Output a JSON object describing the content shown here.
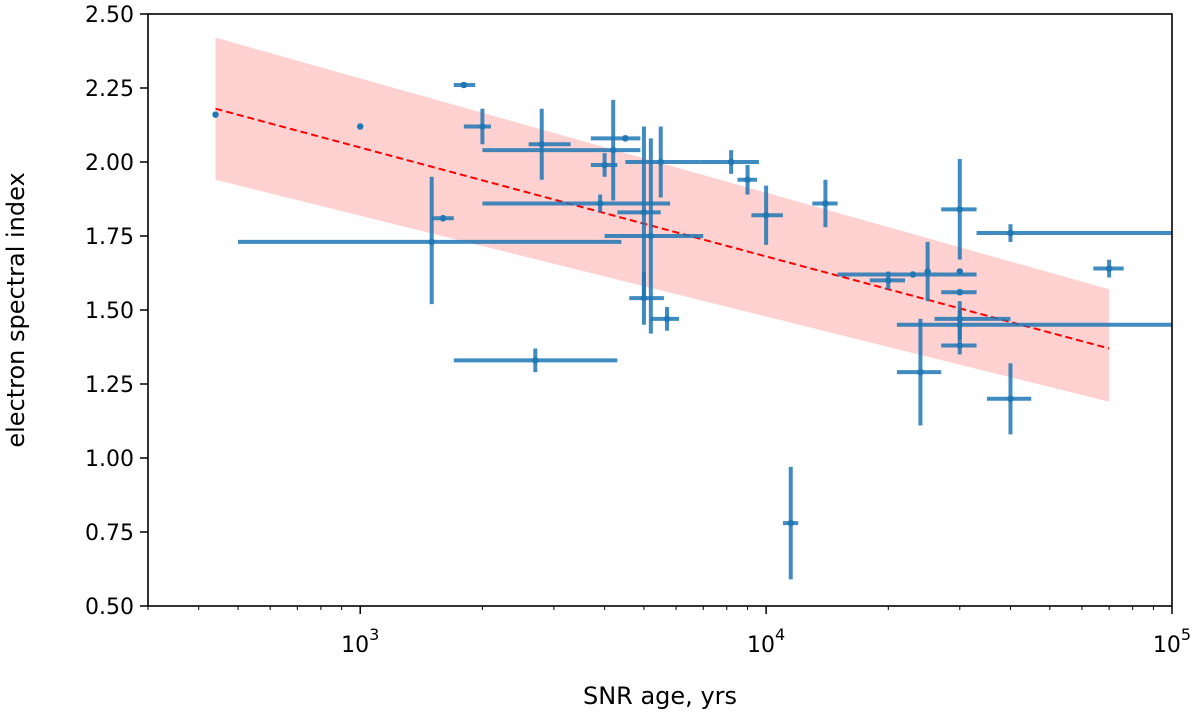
{
  "chart_data": {
    "type": "scatter",
    "title": "",
    "xlabel": "SNR age, yrs",
    "ylabel": "electron spectral index",
    "xscale": "log",
    "xlim": [
      300,
      100000
    ],
    "ylim": [
      0.5,
      2.5
    ],
    "grid": false,
    "legend": "none",
    "x_ticks": [
      {
        "value": 1000,
        "base": "10",
        "exp": "3"
      },
      {
        "value": 10000,
        "base": "10",
        "exp": "4"
      },
      {
        "value": 100000,
        "base": "10",
        "exp": "5"
      }
    ],
    "y_ticks": [
      "0.50",
      "0.75",
      "1.00",
      "1.25",
      "1.50",
      "1.75",
      "2.00",
      "2.25",
      "2.50"
    ],
    "colors": {
      "points": "#1f77b4",
      "fit": "#ff0000",
      "band": "#ffb3b3"
    },
    "fit_line": {
      "x": [
        440,
        70000
      ],
      "y": [
        2.18,
        1.37
      ]
    },
    "confidence_band": {
      "x": [
        440,
        70000
      ],
      "upper": [
        2.42,
        1.57
      ],
      "lower": [
        1.94,
        1.19
      ]
    },
    "series": [
      {
        "points": [
          {
            "x": 440,
            "y": 2.16,
            "xerr": [
              440,
              440
            ],
            "yerr": [
              0.01,
              0.01
            ]
          },
          {
            "x": 1000,
            "y": 2.12,
            "xerr": [
              1000,
              1000
            ],
            "yerr": [
              0.01,
              0.01
            ]
          },
          {
            "x": 1800,
            "y": 2.26,
            "xerr": [
              1700,
              1920
            ],
            "yerr": [
              0.01,
              0.01
            ]
          },
          {
            "x": 2000,
            "y": 2.12,
            "xerr": [
              1800,
              2100
            ],
            "yerr": [
              0.06,
              0.06
            ]
          },
          {
            "x": 1600,
            "y": 1.81,
            "xerr": [
              1500,
              1700
            ],
            "yerr": [
              0.01,
              0.01
            ]
          },
          {
            "x": 1500,
            "y": 1.73,
            "xerr": [
              500,
              4400
            ],
            "yerr": [
              0.21,
              0.22
            ]
          },
          {
            "x": 2800,
            "y": 2.06,
            "xerr": [
              2600,
              3300
            ],
            "yerr": [
              0.12,
              0.12
            ]
          },
          {
            "x": 2700,
            "y": 1.33,
            "xerr": [
              1700,
              4300
            ],
            "yerr": [
              0.04,
              0.04
            ]
          },
          {
            "x": 3900,
            "y": 1.86,
            "xerr": [
              2000,
              5800
            ],
            "yerr": [
              0.03,
              0.03
            ]
          },
          {
            "x": 4000,
            "y": 1.99,
            "xerr": [
              3700,
              4300
            ],
            "yerr": [
              0.04,
              0.04
            ]
          },
          {
            "x": 4200,
            "y": 2.04,
            "xerr": [
              2000,
              4900
            ],
            "yerr": [
              0.17,
              0.17
            ]
          },
          {
            "x": 4500,
            "y": 2.08,
            "xerr": [
              3700,
              4900
            ],
            "yerr": [
              0.01,
              0.01
            ]
          },
          {
            "x": 5000,
            "y": 1.83,
            "xerr": [
              4300,
              5500
            ],
            "yerr": [
              0.28,
              0.29
            ]
          },
          {
            "x": 5000,
            "y": 1.54,
            "xerr": [
              4600,
              5600
            ],
            "yerr": [
              0.09,
              0.09
            ]
          },
          {
            "x": 5200,
            "y": 1.75,
            "xerr": [
              4000,
              7000
            ],
            "yerr": [
              0.33,
              0.33
            ]
          },
          {
            "x": 5500,
            "y": 2.0,
            "xerr": [
              4500,
              6900
            ],
            "yerr": [
              0.12,
              0.12
            ]
          },
          {
            "x": 5700,
            "y": 1.47,
            "xerr": [
              5200,
              6100
            ],
            "yerr": [
              0.04,
              0.04
            ]
          },
          {
            "x": 8200,
            "y": 2.0,
            "xerr": [
              6900,
              9600
            ],
            "yerr": [
              0.04,
              0.04
            ]
          },
          {
            "x": 9000,
            "y": 1.94,
            "xerr": [
              8500,
              9500
            ],
            "yerr": [
              0.05,
              0.05
            ]
          },
          {
            "x": 10000,
            "y": 1.82,
            "xerr": [
              9200,
              11000
            ],
            "yerr": [
              0.1,
              0.1
            ]
          },
          {
            "x": 11500,
            "y": 0.78,
            "xerr": [
              11000,
              12000
            ],
            "yerr": [
              0.19,
              0.19
            ]
          },
          {
            "x": 14000,
            "y": 1.86,
            "xerr": [
              13000,
              15000
            ],
            "yerr": [
              0.08,
              0.08
            ]
          },
          {
            "x": 20000,
            "y": 1.6,
            "xerr": [
              18000,
              22000
            ],
            "yerr": [
              0.03,
              0.03
            ]
          },
          {
            "x": 23000,
            "y": 1.62,
            "xerr": [
              15000,
              33000
            ],
            "yerr": [
              0.01,
              0.01
            ]
          },
          {
            "x": 24000,
            "y": 1.29,
            "xerr": [
              21000,
              27000
            ],
            "yerr": [
              0.18,
              0.18
            ]
          },
          {
            "x": 25000,
            "y": 1.63,
            "xerr": [
              25000,
              25000
            ],
            "yerr": [
              0.1,
              0.1
            ]
          },
          {
            "x": 30000,
            "y": 1.84,
            "xerr": [
              27000,
              33000
            ],
            "yerr": [
              0.17,
              0.17
            ]
          },
          {
            "x": 30000,
            "y": 1.63,
            "xerr": [
              30000,
              30000
            ],
            "yerr": [
              0.01,
              0.01
            ]
          },
          {
            "x": 30000,
            "y": 1.56,
            "xerr": [
              27000,
              33000
            ],
            "yerr": [
              0.01,
              0.01
            ]
          },
          {
            "x": 30000,
            "y": 1.47,
            "xerr": [
              26000,
              40000
            ],
            "yerr": [
              0.06,
              0.06
            ]
          },
          {
            "x": 30000,
            "y": 1.45,
            "xerr": [
              21000,
              100000
            ],
            "yerr": [
              0.05,
              0.05
            ]
          },
          {
            "x": 30000,
            "y": 1.38,
            "xerr": [
              27000,
              33000
            ],
            "yerr": [
              0.03,
              0.03
            ]
          },
          {
            "x": 40000,
            "y": 1.76,
            "xerr": [
              33000,
              100000
            ],
            "yerr": [
              0.03,
              0.03
            ]
          },
          {
            "x": 40000,
            "y": 1.2,
            "xerr": [
              35000,
              45000
            ],
            "yerr": [
              0.12,
              0.12
            ]
          },
          {
            "x": 70000,
            "y": 1.64,
            "xerr": [
              64000,
              76000
            ],
            "yerr": [
              0.03,
              0.03
            ]
          }
        ]
      }
    ]
  }
}
